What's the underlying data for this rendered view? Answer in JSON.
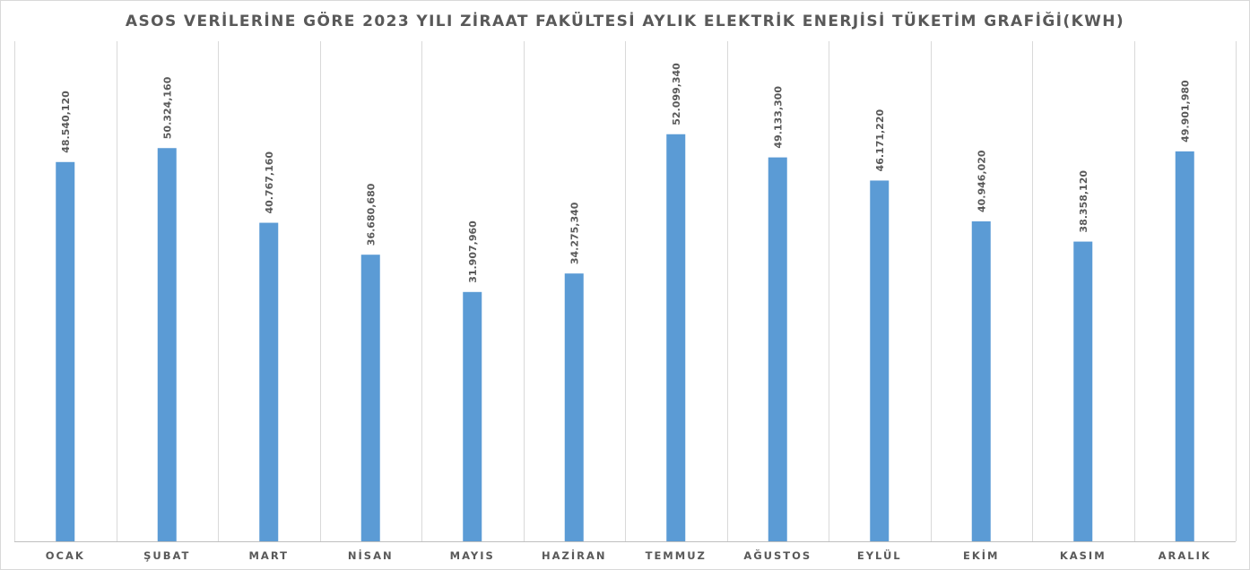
{
  "chart_data": {
    "type": "bar",
    "title": "ASOS VERİLERİNE GÖRE 2023 YILI ZİRAAT FAKÜLTESİ AYLIK ELEKTRİK ENERJİSİ TÜKETİM GRAFİĞİ(KWH)",
    "categories": [
      "OCAK",
      "ŞUBAT",
      "MART",
      "NİSAN",
      "MAYIS",
      "HAZİRAN",
      "TEMMUZ",
      "AĞUSTOS",
      "EYLÜL",
      "EKİM",
      "KASIM",
      "ARALIK"
    ],
    "values": [
      48540.12,
      50324.16,
      40767.16,
      36680.68,
      31907.96,
      34275.34,
      52099.34,
      49133.3,
      46171.22,
      40946.02,
      38358.12,
      49901.98
    ],
    "data_labels": [
      "48.540,120",
      "50.324,160",
      "40.767,160",
      "36.680,680",
      "31.907,960",
      "34.275,340",
      "52.099,340",
      "49.133,300",
      "46.171,220",
      "40.946,020",
      "38.358,120",
      "49.901,980"
    ],
    "ylim": [
      0,
      64000
    ],
    "grid": "vertical",
    "legend": "none",
    "bar_color": "#5b9bd5",
    "xlabel": "",
    "ylabel": ""
  }
}
